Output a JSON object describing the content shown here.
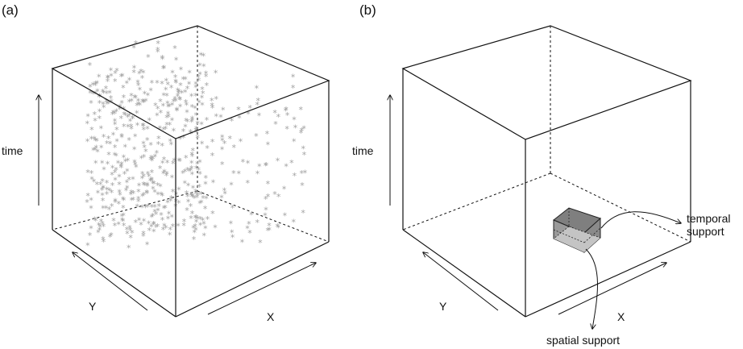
{
  "panels": [
    {
      "label": "(a)",
      "axes": {
        "time": "time",
        "y": "Y",
        "x": "X"
      }
    },
    {
      "label": "(b)",
      "axes": {
        "time": "time",
        "y": "Y",
        "x": "X"
      },
      "annotations": {
        "temporal_line1": "temporal",
        "temporal_line2": "support",
        "spatial": "spatial support"
      }
    }
  ],
  "point_marker": "asterisk",
  "colors": {
    "points": "#a3a3a3",
    "lines": "#111111",
    "support_dark": "#7f7f7f",
    "support_light": "#bdbdbd"
  }
}
